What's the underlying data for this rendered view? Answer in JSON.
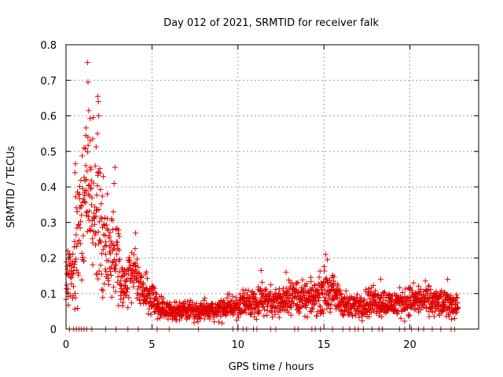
{
  "chart_data": {
    "type": "scatter",
    "title": "Day 012 of 2021, SRMTID for receiver falk",
    "xlabel": "GPS time / hours",
    "ylabel": "SRMTID / TECUs",
    "xlim": [
      0,
      24
    ],
    "ylim": [
      0,
      0.8
    ],
    "x_ticks": [
      "0",
      "5",
      "10",
      "15",
      "20"
    ],
    "y_ticks": [
      "0",
      "0.1",
      "0.2",
      "0.3",
      "0.4",
      "0.5",
      "0.6",
      "0.7",
      "0.8"
    ],
    "grid": true,
    "marker": "plus",
    "color": "#e00000",
    "series": [
      {
        "name": "SRMTID",
        "anchors": [
          [
            0.0,
            0.15
          ],
          [
            0.2,
            0.17
          ],
          [
            0.4,
            0.15
          ],
          [
            0.6,
            0.22
          ],
          [
            0.8,
            0.3
          ],
          [
            1.0,
            0.35
          ],
          [
            1.2,
            0.38
          ],
          [
            1.4,
            0.36
          ],
          [
            1.6,
            0.33
          ],
          [
            1.8,
            0.34
          ],
          [
            2.0,
            0.3
          ],
          [
            2.2,
            0.26
          ],
          [
            2.4,
            0.22
          ],
          [
            2.7,
            0.2
          ],
          [
            3.0,
            0.2
          ],
          [
            3.2,
            0.13
          ],
          [
            3.5,
            0.12
          ],
          [
            3.8,
            0.15
          ],
          [
            4.0,
            0.17
          ],
          [
            4.3,
            0.12
          ],
          [
            4.6,
            0.1
          ],
          [
            5.0,
            0.09
          ],
          [
            5.5,
            0.06
          ],
          [
            6.0,
            0.05
          ],
          [
            7.0,
            0.055
          ],
          [
            8.0,
            0.05
          ],
          [
            9.0,
            0.055
          ],
          [
            10.0,
            0.065
          ],
          [
            10.5,
            0.07
          ],
          [
            11.0,
            0.08
          ],
          [
            11.5,
            0.085
          ],
          [
            12.0,
            0.08
          ],
          [
            12.5,
            0.075
          ],
          [
            13.0,
            0.1
          ],
          [
            13.5,
            0.09
          ],
          [
            14.0,
            0.08
          ],
          [
            14.5,
            0.09
          ],
          [
            15.0,
            0.11
          ],
          [
            15.5,
            0.1
          ],
          [
            16.0,
            0.08
          ],
          [
            16.5,
            0.06
          ],
          [
            17.0,
            0.07
          ],
          [
            18.0,
            0.08
          ],
          [
            19.0,
            0.07
          ],
          [
            20.0,
            0.08
          ],
          [
            21.0,
            0.08
          ],
          [
            22.0,
            0.07
          ],
          [
            22.8,
            0.07
          ]
        ],
        "outliers": [
          [
            1.25,
            0.75
          ],
          [
            1.28,
            0.695
          ],
          [
            1.32,
            0.615
          ],
          [
            1.85,
            0.655
          ],
          [
            1.88,
            0.64
          ],
          [
            1.9,
            0.6
          ],
          [
            1.83,
            0.55
          ],
          [
            1.05,
            0.51
          ],
          [
            1.4,
            0.53
          ],
          [
            1.55,
            0.535
          ],
          [
            2.85,
            0.455
          ],
          [
            0.55,
            0.465
          ],
          [
            0.52,
            0.44
          ],
          [
            1.15,
            0.46
          ],
          [
            2.8,
            0.41
          ],
          [
            4.05,
            0.27
          ],
          [
            15.1,
            0.21
          ],
          [
            15.2,
            0.195
          ],
          [
            11.35,
            0.165
          ],
          [
            12.8,
            0.16
          ],
          [
            18.3,
            0.14
          ],
          [
            22.2,
            0.14
          ],
          [
            0.1,
            0.22
          ]
        ],
        "zeros": [
          0.2,
          0.45,
          0.6,
          0.75,
          0.9,
          1.05,
          1.2,
          1.5,
          2.3,
          2.9,
          3.6,
          4.2,
          5.3,
          6.0,
          7.7,
          9.7,
          10.0,
          10.3,
          10.5,
          10.9,
          11.1,
          11.9,
          12.2,
          13.3,
          13.5,
          14.3,
          14.5,
          14.8,
          15.5,
          16.1,
          16.5,
          16.8,
          17.0,
          17.3,
          17.8,
          18.2,
          18.4,
          19.4,
          19.7,
          20.1,
          20.5,
          20.8,
          21.3,
          21.8,
          22.4,
          22.6
        ]
      }
    ]
  }
}
